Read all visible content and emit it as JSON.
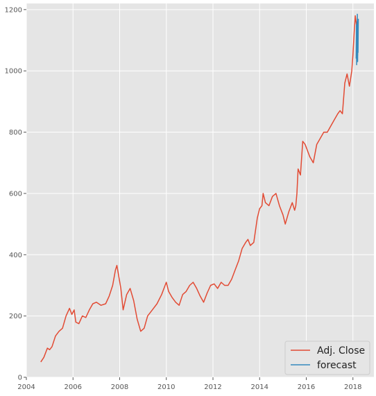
{
  "chart_data": {
    "type": "line",
    "title": "",
    "xlabel": "",
    "ylabel": "",
    "xlim": [
      2004.0,
      2018.9
    ],
    "ylim": [
      0,
      1220
    ],
    "x_ticks": [
      2004,
      2006,
      2008,
      2010,
      2012,
      2014,
      2016,
      2018
    ],
    "y_ticks": [
      0,
      200,
      400,
      600,
      800,
      1000,
      1200
    ],
    "grid": true,
    "legend_position": "lower right",
    "colors": {
      "background": "#e5e5e5",
      "grid": "#ffffff",
      "adj_close": "#e24a33",
      "forecast": "#348abd",
      "tick_text": "#555555"
    },
    "series": [
      {
        "name": "Adj. Close",
        "x": [
          2004.62,
          2004.75,
          2004.9,
          2005.0,
          2005.1,
          2005.25,
          2005.4,
          2005.55,
          2005.7,
          2005.85,
          2005.95,
          2006.05,
          2006.12,
          2006.25,
          2006.4,
          2006.55,
          2006.7,
          2006.85,
          2007.0,
          2007.2,
          2007.4,
          2007.55,
          2007.7,
          2007.82,
          2007.88,
          2007.95,
          2008.05,
          2008.15,
          2008.3,
          2008.45,
          2008.6,
          2008.75,
          2008.9,
          2009.05,
          2009.2,
          2009.4,
          2009.6,
          2009.8,
          2010.0,
          2010.1,
          2010.25,
          2010.4,
          2010.55,
          2010.7,
          2010.85,
          2011.0,
          2011.15,
          2011.3,
          2011.45,
          2011.6,
          2011.75,
          2011.9,
          2012.05,
          2012.2,
          2012.35,
          2012.5,
          2012.65,
          2012.8,
          2012.95,
          2013.1,
          2013.25,
          2013.4,
          2013.5,
          2013.6,
          2013.75,
          2013.9,
          2014.0,
          2014.1,
          2014.15,
          2014.25,
          2014.4,
          2014.55,
          2014.7,
          2014.85,
          2015.0,
          2015.1,
          2015.25,
          2015.4,
          2015.5,
          2015.55,
          2015.6,
          2015.65,
          2015.75,
          2015.85,
          2015.95,
          2016.05,
          2016.15,
          2016.3,
          2016.45,
          2016.6,
          2016.75,
          2016.9,
          2017.05,
          2017.2,
          2017.35,
          2017.45,
          2017.55,
          2017.65,
          2017.75,
          2017.85,
          2017.95,
          2018.0,
          2018.05,
          2018.1,
          2018.15,
          2018.2
        ],
        "y": [
          50,
          65,
          95,
          90,
          100,
          135,
          150,
          160,
          200,
          225,
          205,
          220,
          180,
          175,
          200,
          195,
          220,
          240,
          245,
          235,
          240,
          265,
          300,
          350,
          365,
          335,
          290,
          220,
          270,
          290,
          250,
          190,
          150,
          160,
          200,
          220,
          240,
          270,
          310,
          280,
          260,
          245,
          235,
          270,
          280,
          300,
          310,
          290,
          265,
          245,
          275,
          300,
          305,
          290,
          310,
          300,
          300,
          320,
          350,
          380,
          420,
          440,
          450,
          430,
          440,
          520,
          550,
          560,
          600,
          570,
          560,
          590,
          600,
          560,
          530,
          500,
          540,
          570,
          545,
          560,
          600,
          680,
          660,
          770,
          760,
          740,
          720,
          700,
          760,
          780,
          800,
          800,
          820,
          840,
          860,
          870,
          860,
          960,
          990,
          950,
          1000,
          1050,
          1120,
          1180,
          1150,
          1050
        ]
      },
      {
        "name": "forecast",
        "x": [
          2018.14,
          2018.15,
          2018.16,
          2018.17,
          2018.18,
          2018.19,
          2018.2,
          2018.21,
          2018.22,
          2018.23
        ],
        "y": [
          1040,
          1150,
          1020,
          1160,
          1080,
          1185,
          1030,
          1120,
          1060,
          1170
        ]
      }
    ]
  }
}
